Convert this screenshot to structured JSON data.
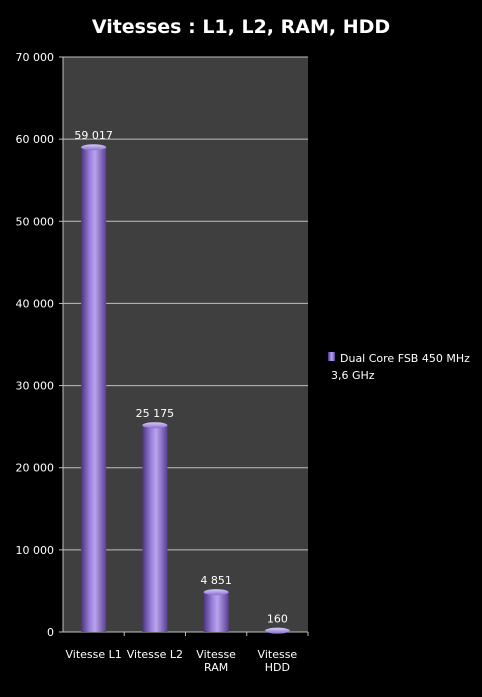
{
  "chart_data": {
    "type": "bar",
    "title": "Vitesses : L1, L2, RAM, HDD",
    "categories": [
      [
        "Vitesse L1"
      ],
      [
        "Vitesse L2"
      ],
      [
        "Vitesse",
        "RAM"
      ],
      [
        "Vitesse",
        "HDD"
      ]
    ],
    "series": [
      {
        "name_lines": [
          "Dual Core FSB 450 MHz",
          "3,6 GHz"
        ],
        "values": [
          59017,
          25175,
          4851,
          160
        ],
        "value_labels": [
          "59 017",
          "25 175",
          "4 851",
          "160"
        ],
        "color": "#7b5bbd"
      }
    ],
    "yticks": [
      "0",
      "10 000",
      "20 000",
      "30 000",
      "40 000",
      "50 000",
      "60 000",
      "70 000"
    ],
    "ylim": [
      0,
      70000
    ],
    "grid": true,
    "legend_position": "right",
    "colors": {
      "background": "#000000",
      "plot_area": "#3f3f3f",
      "gridline": "#bfbfbf",
      "text": "#ffffff",
      "bar": "#7b5bbd",
      "bar_highlight": "#b9a4ec",
      "bar_shadow": "#4a3380"
    }
  }
}
